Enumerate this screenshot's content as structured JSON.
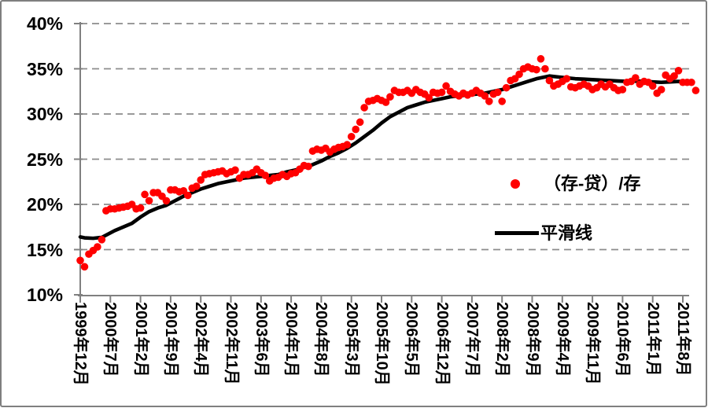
{
  "frame": {
    "background": "#ffffff",
    "border_color": "#7f7f7f"
  },
  "colors": {
    "scatter": "#ff0000",
    "line": "#000000",
    "grid": "#8c8c8c",
    "axis": "#808080"
  },
  "legend": {
    "position": "inside-right"
  },
  "chart_data": {
    "type": "scatter",
    "title": "",
    "y_axis": {
      "unit": "%",
      "min": 10,
      "max": 40,
      "tick_step": 5,
      "tick_values": [
        10,
        15,
        20,
        25,
        30,
        35,
        40
      ],
      "tick_labels": [
        "10%",
        "15%",
        "20%",
        "25%",
        "30%",
        "35%",
        "40%"
      ],
      "grid": true,
      "grid_style": "dashed"
    },
    "x_axis": {
      "start": "1999-12",
      "step": "1 month",
      "tick_every_months": 7,
      "tick_labels": [
        "1999年12月",
        "2000年7月",
        "2001年2月",
        "2001年9月",
        "2002年4月",
        "2002年11月",
        "2003年6月",
        "2004年1月",
        "2004年8月",
        "2005年3月",
        "2005年10月",
        "2006年5月",
        "2006年12月",
        "2007年7月",
        "2008年2月",
        "2008年9月",
        "2009年4月",
        "2009年11月",
        "2010年6月",
        "2011年1月",
        "2011年8月"
      ]
    },
    "legend_position": "inside-right",
    "series": [
      {
        "name": "（存-贷）/存",
        "type": "scatter",
        "color": "#ff0000",
        "start_month": "1999-12",
        "values_percent": [
          13.8,
          13.1,
          14.5,
          14.9,
          15.3,
          16.1,
          19.3,
          19.5,
          19.5,
          19.6,
          19.7,
          19.8,
          20.0,
          19.5,
          19.6,
          21.1,
          20.4,
          21.3,
          21.3,
          20.9,
          20.4,
          21.6,
          21.6,
          21.4,
          21.5,
          21.0,
          21.8,
          22.0,
          22.7,
          23.3,
          23.4,
          23.5,
          23.6,
          23.7,
          23.4,
          23.6,
          23.8,
          22.9,
          23.3,
          23.3,
          23.5,
          23.9,
          23.5,
          23.2,
          22.6,
          22.9,
          23.0,
          23.3,
          23.1,
          23.4,
          23.5,
          23.9,
          24.3,
          24.2,
          25.9,
          26.1,
          26.0,
          26.2,
          25.8,
          26.1,
          26.3,
          26.4,
          26.6,
          27.5,
          28.3,
          29.1,
          30.7,
          31.4,
          31.5,
          31.7,
          31.5,
          31.3,
          31.9,
          32.6,
          32.4,
          32.4,
          32.6,
          32.3,
          32.7,
          32.4,
          32.2,
          31.8,
          32.4,
          32.3,
          32.4,
          33.1,
          32.5,
          32.2,
          32.0,
          32.3,
          32.1,
          32.3,
          32.6,
          32.3,
          32.0,
          31.4,
          32.2,
          32.4,
          31.4,
          32.9,
          33.7,
          33.9,
          34.4,
          35.0,
          35.2,
          35.0,
          34.9,
          36.1,
          35.0,
          33.7,
          33.1,
          33.3,
          33.6,
          33.9,
          33.0,
          32.9,
          33.1,
          33.3,
          33.1,
          32.7,
          32.9,
          33.3,
          33.0,
          33.3,
          32.9,
          32.6,
          32.7,
          33.5,
          33.6,
          34.0,
          33.3,
          33.6,
          33.5,
          33.1,
          32.3,
          32.7,
          34.3,
          33.9,
          34.2,
          34.8,
          33.5,
          33.5,
          33.5,
          32.6
        ]
      },
      {
        "name": "平滑线",
        "type": "line",
        "color": "#000000",
        "points_month_percent": [
          [
            0,
            16.4
          ],
          [
            1,
            16.3
          ],
          [
            3,
            16.25
          ],
          [
            5,
            16.35
          ],
          [
            6,
            16.6
          ],
          [
            8,
            17.1
          ],
          [
            10,
            17.5
          ],
          [
            12,
            17.9
          ],
          [
            14,
            18.6
          ],
          [
            16,
            19.2
          ],
          [
            18,
            19.6
          ],
          [
            20,
            19.9
          ],
          [
            22,
            20.4
          ],
          [
            24,
            20.9
          ],
          [
            26,
            21.3
          ],
          [
            28,
            21.7
          ],
          [
            30,
            22.0
          ],
          [
            32,
            22.3
          ],
          [
            34,
            22.5
          ],
          [
            36,
            22.7
          ],
          [
            38,
            22.9
          ],
          [
            40,
            23.0
          ],
          [
            42,
            23.1
          ],
          [
            44,
            23.2
          ],
          [
            46,
            23.3
          ],
          [
            48,
            23.6
          ],
          [
            50,
            23.8
          ],
          [
            52,
            24.1
          ],
          [
            54,
            24.4
          ],
          [
            56,
            24.8
          ],
          [
            58,
            25.3
          ],
          [
            60,
            25.7
          ],
          [
            62,
            26.2
          ],
          [
            64,
            26.8
          ],
          [
            66,
            27.5
          ],
          [
            68,
            28.2
          ],
          [
            70,
            29.0
          ],
          [
            72,
            29.7
          ],
          [
            74,
            30.2
          ],
          [
            76,
            30.7
          ],
          [
            78,
            31.0
          ],
          [
            80,
            31.3
          ],
          [
            82,
            31.5
          ],
          [
            84,
            31.7
          ],
          [
            86,
            31.9
          ],
          [
            88,
            32.0
          ],
          [
            90,
            32.1
          ],
          [
            92,
            32.2
          ],
          [
            94,
            32.3
          ],
          [
            96,
            32.5
          ],
          [
            98,
            32.7
          ],
          [
            100,
            33.0
          ],
          [
            102,
            33.3
          ],
          [
            104,
            33.6
          ],
          [
            106,
            33.9
          ],
          [
            108,
            34.1
          ],
          [
            109,
            34.2
          ],
          [
            111,
            34.1
          ],
          [
            113,
            34.0
          ],
          [
            115,
            33.9
          ],
          [
            117,
            33.85
          ],
          [
            119,
            33.8
          ],
          [
            121,
            33.75
          ],
          [
            123,
            33.7
          ],
          [
            125,
            33.65
          ],
          [
            127,
            33.6
          ],
          [
            129,
            33.65
          ],
          [
            131,
            33.6
          ],
          [
            133,
            33.55
          ],
          [
            135,
            33.5
          ],
          [
            137,
            33.55
          ],
          [
            139,
            33.6
          ],
          [
            141,
            33.55
          ],
          [
            142,
            33.5
          ]
        ]
      }
    ]
  }
}
